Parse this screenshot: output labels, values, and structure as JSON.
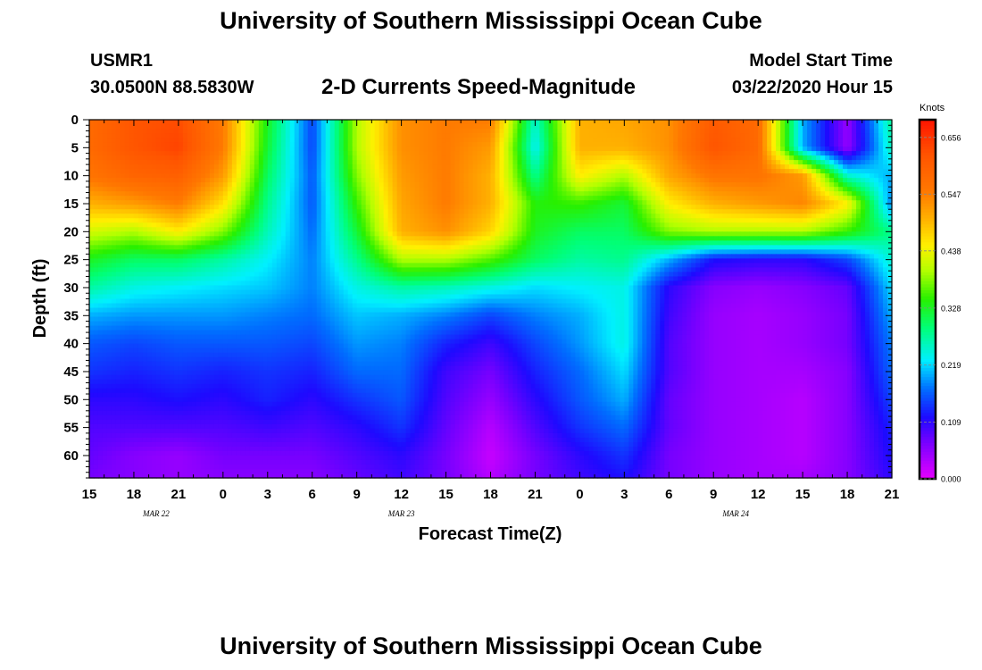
{
  "header": {
    "title": "University of Southern Mississippi Ocean Cube",
    "station": "USMR1",
    "coordinates": "30.0500N 88.5830W",
    "subtitle": "2-D Currents Speed-Magnitude",
    "model_start_label": "Model Start Time",
    "model_start_value": "03/22/2020 Hour 15"
  },
  "footer": {
    "title": "University of Southern Mississippi Ocean Cube"
  },
  "chart_data": {
    "type": "heatmap",
    "title": "2-D Currents Speed-Magnitude",
    "xlabel": "Forecast Time(Z)",
    "ylabel": "Depth (ft)",
    "x_tick_labels": [
      "15",
      "18",
      "21",
      "0",
      "3",
      "6",
      "9",
      "12",
      "15",
      "18",
      "21",
      "0",
      "3",
      "6",
      "9",
      "12",
      "15",
      "18",
      "21"
    ],
    "x_hours_since_start": [
      0,
      3,
      6,
      9,
      12,
      15,
      18,
      21,
      24,
      27,
      30,
      33,
      36,
      39,
      42,
      45,
      48,
      51,
      54
    ],
    "date_labels": [
      {
        "label": "MAR 22",
        "hour": 4.5
      },
      {
        "label": "MAR 23",
        "hour": 21
      },
      {
        "label": "MAR 24",
        "hour": 43.5
      }
    ],
    "y_ticks": [
      0,
      5,
      10,
      15,
      20,
      25,
      30,
      35,
      40,
      45,
      50,
      55,
      60
    ],
    "ylim": [
      0,
      64
    ],
    "xlim_hours": [
      0,
      54
    ],
    "colorbar": {
      "unit": "Knots",
      "ticks": [
        "0.656",
        "0.547",
        "0.438",
        "0.328",
        "0.219",
        "0.109",
        "0.000"
      ],
      "vmin": 0.0,
      "vmax": 0.69
    },
    "depths_ft": [
      0,
      5,
      10,
      15,
      20,
      25,
      30,
      35,
      40,
      45,
      50,
      55,
      60,
      64
    ],
    "times_hours": [
      0,
      3,
      6,
      9,
      12,
      15,
      18,
      21,
      24,
      27,
      30,
      33,
      36,
      39,
      42,
      45,
      48,
      51,
      54
    ],
    "speed_knots": [
      [
        0.58,
        0.62,
        0.63,
        0.55,
        0.33,
        0.15,
        0.4,
        0.53,
        0.55,
        0.55,
        0.25,
        0.5,
        0.51,
        0.53,
        0.61,
        0.58,
        0.2,
        0.05,
        0.28
      ],
      [
        0.58,
        0.62,
        0.64,
        0.55,
        0.32,
        0.15,
        0.4,
        0.53,
        0.55,
        0.52,
        0.23,
        0.5,
        0.5,
        0.53,
        0.62,
        0.58,
        0.2,
        0.05,
        0.26
      ],
      [
        0.56,
        0.59,
        0.6,
        0.52,
        0.3,
        0.16,
        0.38,
        0.52,
        0.55,
        0.5,
        0.28,
        0.45,
        0.4,
        0.51,
        0.56,
        0.56,
        0.52,
        0.25,
        0.2
      ],
      [
        0.5,
        0.52,
        0.55,
        0.46,
        0.28,
        0.16,
        0.35,
        0.51,
        0.55,
        0.5,
        0.34,
        0.35,
        0.32,
        0.45,
        0.5,
        0.52,
        0.54,
        0.45,
        0.18
      ],
      [
        0.42,
        0.4,
        0.45,
        0.38,
        0.26,
        0.17,
        0.32,
        0.5,
        0.53,
        0.47,
        0.33,
        0.3,
        0.3,
        0.38,
        0.4,
        0.4,
        0.4,
        0.35,
        0.28
      ],
      [
        0.33,
        0.3,
        0.3,
        0.27,
        0.23,
        0.18,
        0.28,
        0.4,
        0.4,
        0.36,
        0.3,
        0.27,
        0.28,
        0.2,
        0.12,
        0.11,
        0.11,
        0.15,
        0.25
      ],
      [
        0.27,
        0.24,
        0.23,
        0.22,
        0.21,
        0.18,
        0.24,
        0.27,
        0.26,
        0.24,
        0.22,
        0.23,
        0.24,
        0.11,
        0.06,
        0.05,
        0.06,
        0.08,
        0.22
      ],
      [
        0.2,
        0.19,
        0.19,
        0.19,
        0.18,
        0.17,
        0.21,
        0.2,
        0.18,
        0.15,
        0.18,
        0.2,
        0.24,
        0.1,
        0.05,
        0.04,
        0.05,
        0.07,
        0.2
      ],
      [
        0.16,
        0.15,
        0.16,
        0.16,
        0.16,
        0.15,
        0.19,
        0.18,
        0.13,
        0.1,
        0.15,
        0.19,
        0.24,
        0.09,
        0.05,
        0.04,
        0.05,
        0.07,
        0.18
      ],
      [
        0.14,
        0.13,
        0.14,
        0.13,
        0.14,
        0.13,
        0.17,
        0.17,
        0.1,
        0.07,
        0.13,
        0.17,
        0.22,
        0.09,
        0.05,
        0.04,
        0.04,
        0.06,
        0.17
      ],
      [
        0.11,
        0.11,
        0.12,
        0.11,
        0.13,
        0.11,
        0.14,
        0.16,
        0.09,
        0.05,
        0.11,
        0.16,
        0.2,
        0.08,
        0.05,
        0.04,
        0.03,
        0.06,
        0.15
      ],
      [
        0.09,
        0.09,
        0.09,
        0.09,
        0.1,
        0.09,
        0.11,
        0.14,
        0.08,
        0.03,
        0.09,
        0.14,
        0.17,
        0.08,
        0.05,
        0.04,
        0.03,
        0.06,
        0.13
      ],
      [
        0.08,
        0.06,
        0.05,
        0.07,
        0.07,
        0.07,
        0.09,
        0.11,
        0.07,
        0.02,
        0.07,
        0.11,
        0.14,
        0.07,
        0.05,
        0.04,
        0.03,
        0.06,
        0.12
      ],
      [
        0.07,
        0.06,
        0.05,
        0.06,
        0.06,
        0.06,
        0.08,
        0.1,
        0.07,
        0.03,
        0.07,
        0.1,
        0.12,
        0.07,
        0.05,
        0.04,
        0.04,
        0.06,
        0.11
      ]
    ]
  }
}
